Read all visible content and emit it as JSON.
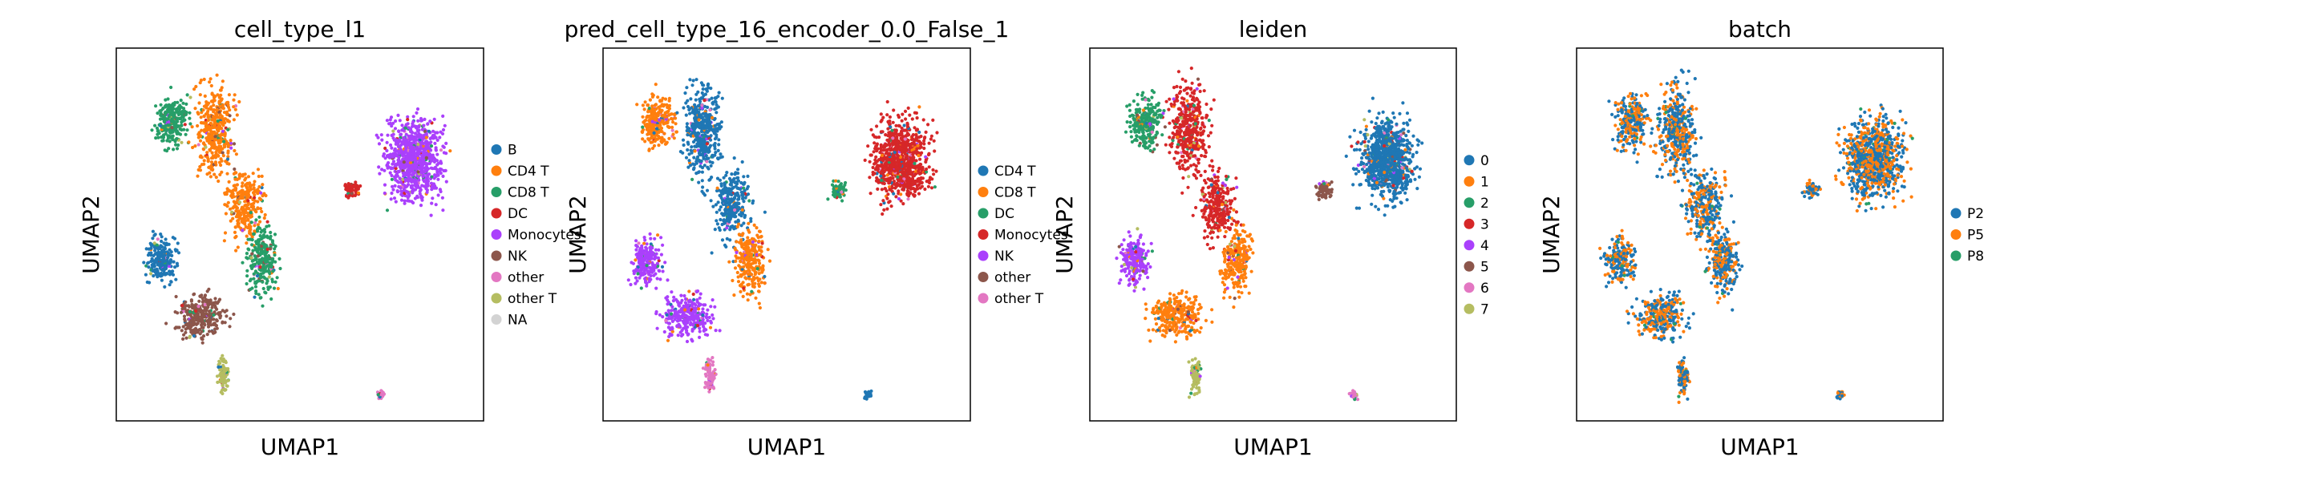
{
  "chart_data": [
    {
      "type": "scatter",
      "title": "cell_type_l1",
      "xlabel": "UMAP1",
      "ylabel": "UMAP2",
      "grid": false,
      "ticks": false,
      "legend_placement": "right",
      "legend": [
        {
          "label": "B",
          "color": "#1f77b4"
        },
        {
          "label": "CD4 T",
          "color": "#ff7f0e"
        },
        {
          "label": "CD8 T",
          "color": "#279e68"
        },
        {
          "label": "DC",
          "color": "#d62728"
        },
        {
          "label": "Monocytes",
          "color": "#aa40fc"
        },
        {
          "label": "NK",
          "color": "#8c564b"
        },
        {
          "label": "other",
          "color": "#e377c2"
        },
        {
          "label": "other T",
          "color": "#b5bd61"
        },
        {
          "label": "NA",
          "color": "#d3d3d3"
        }
      ],
      "regions": {
        "leftTop": 2,
        "leftMid": 1,
        "leftLow": 0,
        "leftRight": 2,
        "leftBottom": 5,
        "tail": 7,
        "dc": 3,
        "blob": 4,
        "small": 6
      }
    },
    {
      "type": "scatter",
      "title": "pred_cell_type_16_encoder_0.0_False_1",
      "xlabel": "UMAP1",
      "ylabel": "UMAP2",
      "grid": false,
      "ticks": false,
      "legend_placement": "right",
      "legend": [
        {
          "label": "CD4 T",
          "color": "#1f77b4"
        },
        {
          "label": "CD8 T",
          "color": "#ff7f0e"
        },
        {
          "label": "DC",
          "color": "#279e68"
        },
        {
          "label": "Monocytes",
          "color": "#d62728"
        },
        {
          "label": "NK",
          "color": "#aa40fc"
        },
        {
          "label": "other",
          "color": "#8c564b"
        },
        {
          "label": "other T",
          "color": "#e377c2"
        }
      ],
      "regions": {
        "leftTop": 1,
        "leftMid": 0,
        "leftLow": 4,
        "leftRight": 1,
        "leftBottom": 4,
        "tail": 6,
        "dc": 2,
        "blob": 3,
        "small": 0
      }
    },
    {
      "type": "scatter",
      "title": "leiden",
      "xlabel": "UMAP1",
      "ylabel": "UMAP2",
      "grid": false,
      "ticks": false,
      "legend_placement": "right",
      "legend": [
        {
          "label": "0",
          "color": "#1f77b4"
        },
        {
          "label": "1",
          "color": "#ff7f0e"
        },
        {
          "label": "2",
          "color": "#279e68"
        },
        {
          "label": "3",
          "color": "#d62728"
        },
        {
          "label": "4",
          "color": "#aa40fc"
        },
        {
          "label": "5",
          "color": "#8c564b"
        },
        {
          "label": "6",
          "color": "#e377c2"
        },
        {
          "label": "7",
          "color": "#b5bd61"
        }
      ],
      "regions": {
        "leftTop": 2,
        "leftMid": 3,
        "leftLow": 4,
        "leftRight": 1,
        "leftBottom": 1,
        "tail": 7,
        "dc": 5,
        "blob": 0,
        "small": 6
      }
    },
    {
      "type": "scatter",
      "title": "batch",
      "xlabel": "UMAP1",
      "ylabel": "UMAP2",
      "grid": false,
      "ticks": false,
      "legend_placement": "right",
      "legend": [
        {
          "label": "P2",
          "color": "#1f77b4"
        },
        {
          "label": "P5",
          "color": "#ff7f0e"
        },
        {
          "label": "P8",
          "color": "#279e68"
        }
      ],
      "mixed": true
    }
  ]
}
